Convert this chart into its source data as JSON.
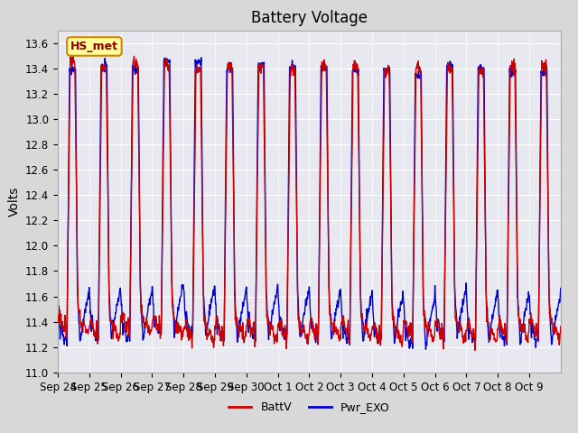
{
  "title": "Battery Voltage",
  "ylabel": "Volts",
  "ylim": [
    11.0,
    13.7
  ],
  "yticks": [
    11.0,
    11.2,
    11.4,
    11.6,
    11.8,
    12.0,
    12.2,
    12.4,
    12.6,
    12.8,
    13.0,
    13.2,
    13.4,
    13.6
  ],
  "xtick_labels": [
    "Sep 24",
    "Sep 25",
    "Sep 26",
    "Sep 27",
    "Sep 28",
    "Sep 29",
    "Sep 30",
    "Oct 1",
    "Oct 2",
    "Oct 3",
    "Oct 4",
    "Oct 5",
    "Oct 6",
    "Oct 7",
    "Oct 8",
    "Oct 9"
  ],
  "color_battv": "#cc0000",
  "color_pwr_exo": "#0000cc",
  "color_fig_bg": "#d8d8d8",
  "color_plot_bg": "#e8e8f0",
  "legend_label_battv": "BattV",
  "legend_label_pwr_exo": "Pwr_EXO",
  "station_label": "HS_met",
  "title_fontsize": 12,
  "axis_label_fontsize": 10,
  "tick_fontsize": 8.5
}
